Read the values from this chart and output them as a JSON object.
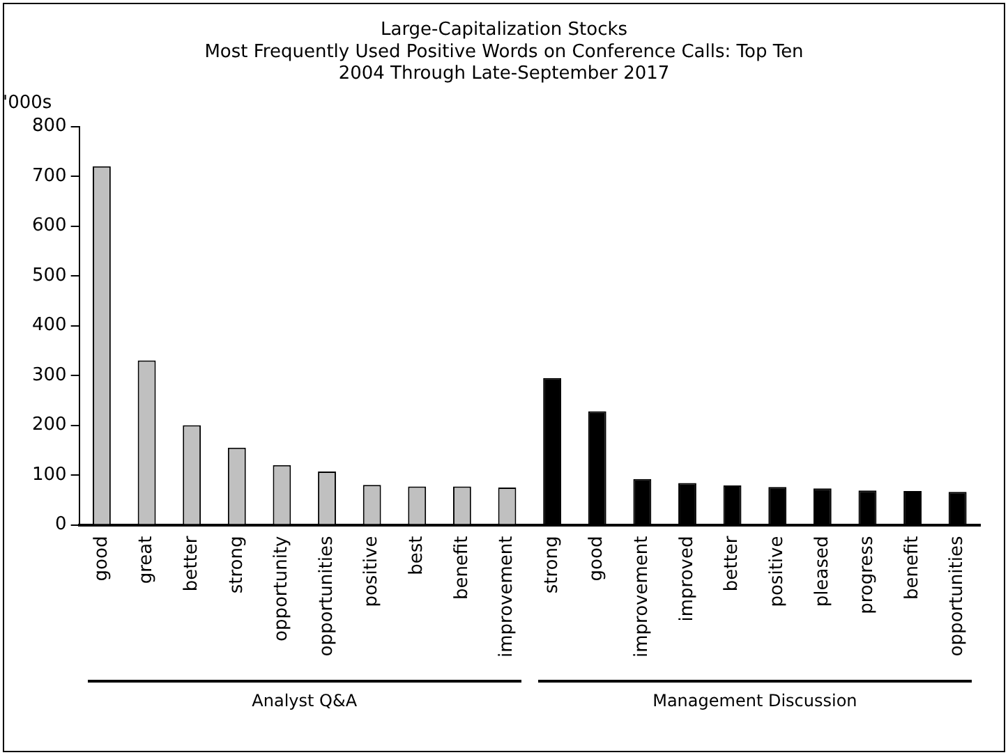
{
  "chart_data": {
    "type": "bar",
    "title": "Large-Capitalization Stocks",
    "subtitle": "Most Frequently Used Positive Words on Conference Calls: Top Ten\n2004 Through Late-September 2017",
    "ylabel": "'000s",
    "categories": [
      "good",
      "great",
      "better",
      "strong",
      "opportunity",
      "opportunities",
      "positive",
      "best",
      "benefit",
      "improvement",
      "strong",
      "good",
      "improvement",
      "improved",
      "better",
      "positive",
      "pleased",
      "progress",
      "benefit",
      "opportunities"
    ],
    "values": [
      720,
      330,
      200,
      155,
      120,
      107,
      80,
      77,
      77,
      75,
      295,
      228,
      92,
      84,
      79,
      76,
      73,
      69,
      68,
      66
    ],
    "colors": [
      "#c0c0c0",
      "#c0c0c0",
      "#c0c0c0",
      "#c0c0c0",
      "#c0c0c0",
      "#c0c0c0",
      "#c0c0c0",
      "#c0c0c0",
      "#c0c0c0",
      "#c0c0c0",
      "#000000",
      "#000000",
      "#000000",
      "#000000",
      "#000000",
      "#000000",
      "#000000",
      "#000000",
      "#000000",
      "#000000"
    ],
    "ylim": [
      0,
      800
    ],
    "yticks": [
      0,
      100,
      200,
      300,
      400,
      500,
      600,
      700,
      800
    ],
    "grid": false,
    "legend": false,
    "annotations": [
      "Analyst Q&A",
      "Management Discussion"
    ]
  }
}
